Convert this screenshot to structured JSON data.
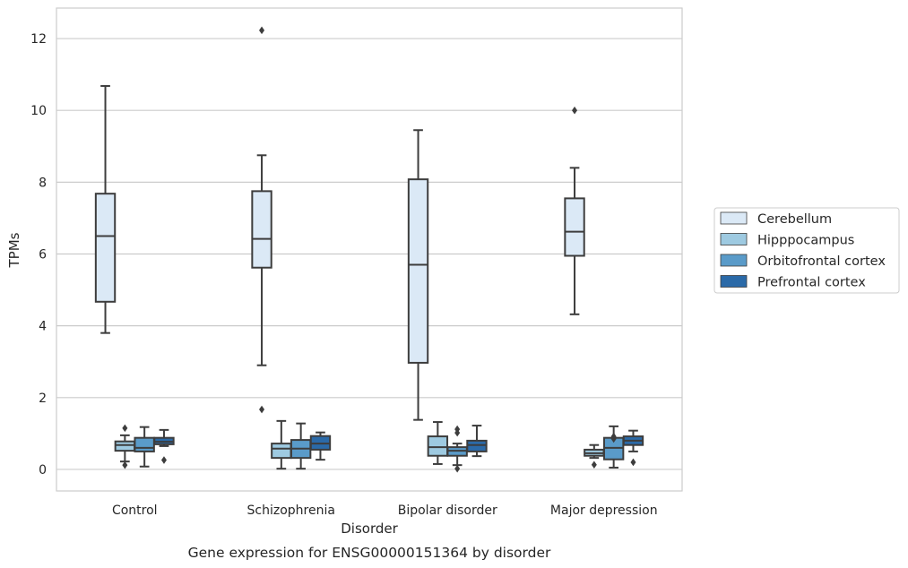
{
  "chart_data": {
    "type": "boxplot",
    "caption": "Gene expression for ENSG00000151364 by disorder",
    "xlabel": "Disorder",
    "ylabel": "TPMs",
    "ylim": [
      -0.6,
      12.85
    ],
    "yticks": [
      0,
      2,
      4,
      6,
      8,
      10,
      12
    ],
    "grid": "horizontal",
    "legend_position": "right",
    "categories": [
      "Control",
      "Schizophrenia",
      "Bipolar disorder",
      "Major depression"
    ],
    "series": [
      {
        "name": "Cerebellum",
        "color": "#dbe9f6",
        "boxes": [
          {
            "min": 3.8,
            "q1": 4.67,
            "median": 6.5,
            "q3": 7.68,
            "max": 10.68,
            "outliers": []
          },
          {
            "min": 2.9,
            "q1": 5.62,
            "median": 6.42,
            "q3": 7.75,
            "max": 8.75,
            "outliers": [
              12.23,
              1.67
            ]
          },
          {
            "min": 1.38,
            "q1": 2.97,
            "median": 5.7,
            "q3": 8.08,
            "max": 9.45,
            "outliers": []
          },
          {
            "min": 4.32,
            "q1": 5.95,
            "median": 6.62,
            "q3": 7.55,
            "max": 8.4,
            "outliers": [
              10.0
            ]
          }
        ]
      },
      {
        "name": "Hipppocampus",
        "color": "#9ecae1",
        "boxes": [
          {
            "min": 0.22,
            "q1": 0.52,
            "median": 0.68,
            "q3": 0.78,
            "max": 0.95,
            "outliers": [
              1.15,
              0.12
            ]
          },
          {
            "min": 0.02,
            "q1": 0.32,
            "median": 0.58,
            "q3": 0.72,
            "max": 1.35,
            "outliers": []
          },
          {
            "min": 0.15,
            "q1": 0.38,
            "median": 0.62,
            "q3": 0.92,
            "max": 1.32,
            "outliers": []
          },
          {
            "min": 0.32,
            "q1": 0.38,
            "median": 0.45,
            "q3": 0.55,
            "max": 0.68,
            "outliers": [
              0.13
            ]
          }
        ]
      },
      {
        "name": "Orbitofrontal cortex",
        "color": "#5a9bc9",
        "boxes": [
          {
            "min": 0.08,
            "q1": 0.5,
            "median": 0.6,
            "q3": 0.88,
            "max": 1.18,
            "outliers": []
          },
          {
            "min": 0.02,
            "q1": 0.32,
            "median": 0.58,
            "q3": 0.82,
            "max": 1.28,
            "outliers": []
          },
          {
            "min": 0.12,
            "q1": 0.38,
            "median": 0.52,
            "q3": 0.62,
            "max": 0.72,
            "outliers": [
              1.12,
              1.02,
              0.02
            ]
          },
          {
            "min": 0.05,
            "q1": 0.28,
            "median": 0.6,
            "q3": 0.88,
            "max": 1.2,
            "outliers": [
              0.92,
              0.85
            ]
          }
        ]
      },
      {
        "name": "Prefrontal cortex",
        "color": "#2b6aa8",
        "boxes": [
          {
            "min": 0.65,
            "q1": 0.7,
            "median": 0.77,
            "q3": 0.88,
            "max": 1.1,
            "outliers": [
              0.26
            ]
          },
          {
            "min": 0.27,
            "q1": 0.55,
            "median": 0.72,
            "q3": 0.93,
            "max": 1.03,
            "outliers": []
          },
          {
            "min": 0.37,
            "q1": 0.5,
            "median": 0.68,
            "q3": 0.8,
            "max": 1.22,
            "outliers": []
          },
          {
            "min": 0.5,
            "q1": 0.68,
            "median": 0.8,
            "q3": 0.92,
            "max": 1.08,
            "outliers": [
              0.2
            ]
          }
        ]
      }
    ]
  }
}
